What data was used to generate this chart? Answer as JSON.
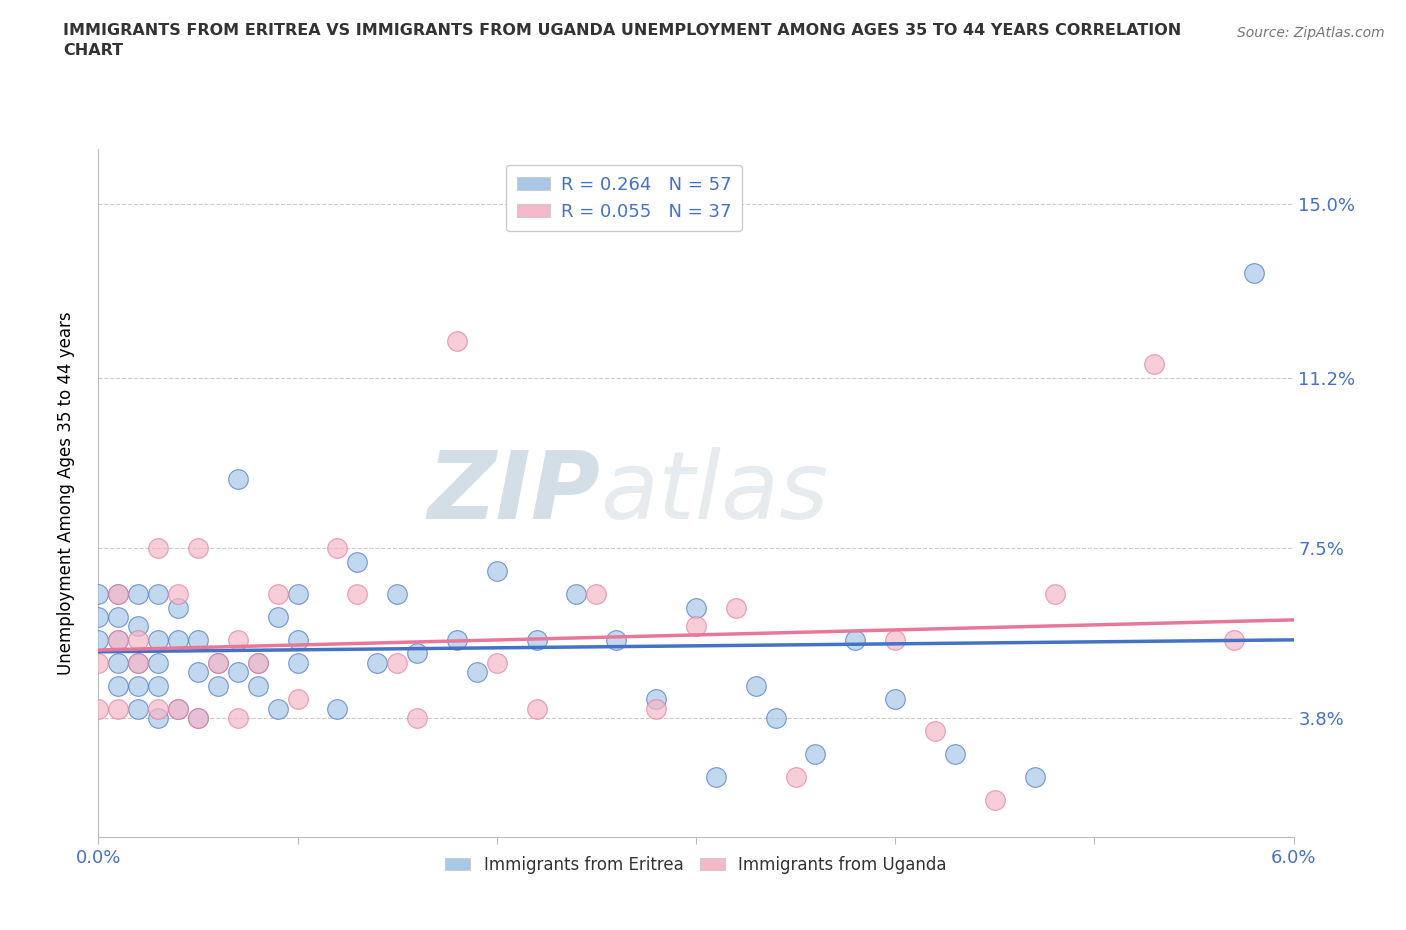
{
  "title": "IMMIGRANTS FROM ERITREA VS IMMIGRANTS FROM UGANDA UNEMPLOYMENT AMONG AGES 35 TO 44 YEARS CORRELATION\nCHART",
  "source": "Source: ZipAtlas.com",
  "ylabel": "Unemployment Among Ages 35 to 44 years",
  "xlim": [
    0.0,
    0.06
  ],
  "ylim": [
    0.012,
    0.162
  ],
  "ytick_labels": [
    "3.8%",
    "7.5%",
    "11.2%",
    "15.0%"
  ],
  "ytick_values": [
    0.038,
    0.075,
    0.112,
    0.15
  ],
  "color_eritrea": "#a8c8e8",
  "color_uganda": "#f4b8c8",
  "line_color_eritrea": "#4472c4",
  "line_color_uganda": "#e8789a",
  "R_eritrea": 0.264,
  "N_eritrea": 57,
  "R_uganda": 0.055,
  "N_uganda": 37,
  "watermark_zip": "ZIP",
  "watermark_atlas": "atlas",
  "legend_label_eritrea": "Immigrants from Eritrea",
  "legend_label_uganda": "Immigrants from Uganda",
  "eritrea_x": [
    0.0,
    0.0,
    0.0,
    0.001,
    0.001,
    0.001,
    0.001,
    0.001,
    0.002,
    0.002,
    0.002,
    0.002,
    0.002,
    0.003,
    0.003,
    0.003,
    0.003,
    0.003,
    0.004,
    0.004,
    0.004,
    0.005,
    0.005,
    0.005,
    0.006,
    0.006,
    0.007,
    0.007,
    0.008,
    0.008,
    0.009,
    0.009,
    0.01,
    0.01,
    0.01,
    0.012,
    0.013,
    0.014,
    0.015,
    0.016,
    0.018,
    0.019,
    0.02,
    0.022,
    0.024,
    0.026,
    0.028,
    0.03,
    0.031,
    0.033,
    0.034,
    0.036,
    0.038,
    0.04,
    0.043,
    0.047,
    0.058
  ],
  "eritrea_y": [
    0.055,
    0.06,
    0.065,
    0.045,
    0.05,
    0.055,
    0.06,
    0.065,
    0.04,
    0.045,
    0.05,
    0.058,
    0.065,
    0.038,
    0.045,
    0.05,
    0.055,
    0.065,
    0.04,
    0.055,
    0.062,
    0.038,
    0.048,
    0.055,
    0.045,
    0.05,
    0.048,
    0.09,
    0.045,
    0.05,
    0.04,
    0.06,
    0.05,
    0.055,
    0.065,
    0.04,
    0.072,
    0.05,
    0.065,
    0.052,
    0.055,
    0.048,
    0.07,
    0.055,
    0.065,
    0.055,
    0.042,
    0.062,
    0.025,
    0.045,
    0.038,
    0.03,
    0.055,
    0.042,
    0.03,
    0.025,
    0.135
  ],
  "uganda_x": [
    0.0,
    0.0,
    0.001,
    0.001,
    0.001,
    0.002,
    0.002,
    0.003,
    0.003,
    0.004,
    0.004,
    0.005,
    0.005,
    0.006,
    0.007,
    0.007,
    0.008,
    0.009,
    0.01,
    0.012,
    0.013,
    0.015,
    0.016,
    0.018,
    0.02,
    0.022,
    0.025,
    0.028,
    0.03,
    0.032,
    0.035,
    0.04,
    0.042,
    0.045,
    0.048,
    0.053,
    0.057
  ],
  "uganda_y": [
    0.04,
    0.05,
    0.04,
    0.055,
    0.065,
    0.05,
    0.055,
    0.04,
    0.075,
    0.04,
    0.065,
    0.038,
    0.075,
    0.05,
    0.038,
    0.055,
    0.05,
    0.065,
    0.042,
    0.075,
    0.065,
    0.05,
    0.038,
    0.12,
    0.05,
    0.04,
    0.065,
    0.04,
    0.058,
    0.062,
    0.025,
    0.055,
    0.035,
    0.02,
    0.065,
    0.115,
    0.055
  ]
}
